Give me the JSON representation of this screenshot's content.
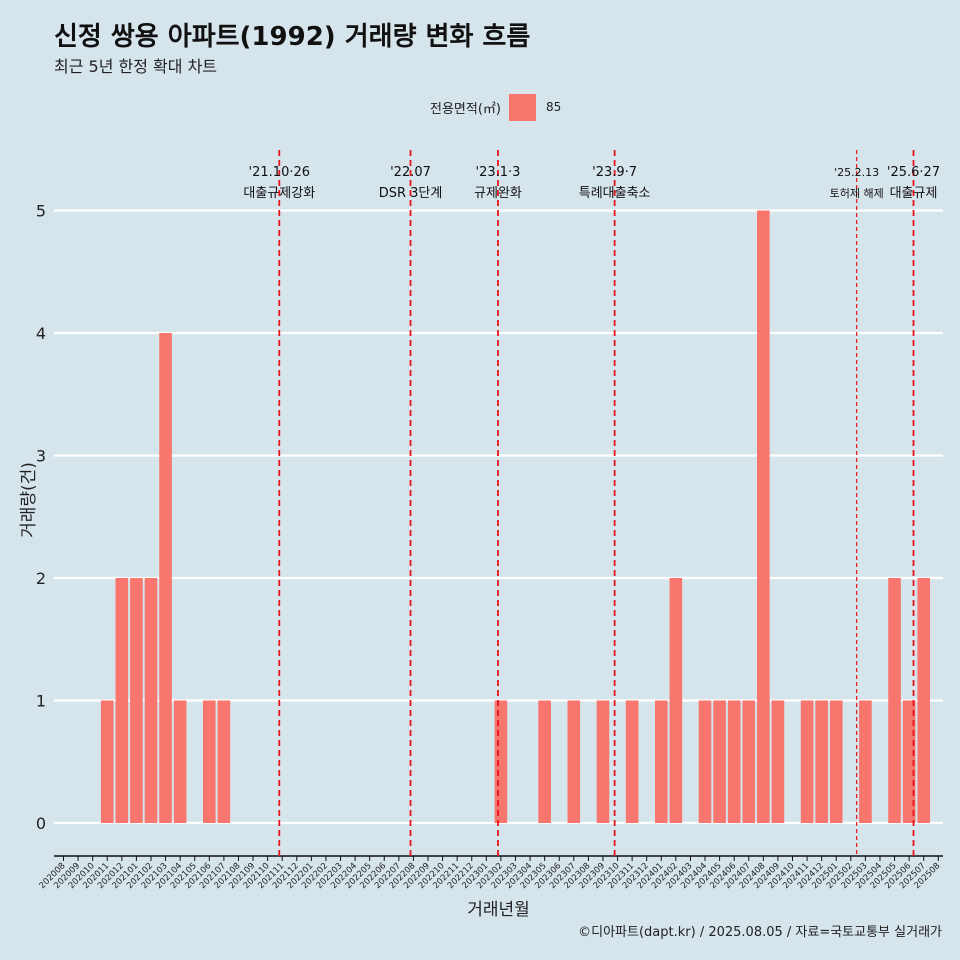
{
  "title": "신정 쌍용 아파트(1992) 거래량 변화 흐름",
  "subtitle": "최근 5년 한정 확대 차트",
  "legend": {
    "title": "전용면적(㎡)",
    "items": [
      {
        "label": "85",
        "color": "#f8766d"
      }
    ]
  },
  "caption": "©디아파트(dapt.kr) / 2025.08.05 / 자료=국토교통부 실거래가",
  "chart_data": {
    "type": "bar",
    "xlabel": "거래년월",
    "ylabel": "거래량(건)",
    "ylim": [
      0,
      5
    ],
    "yticks": [
      0,
      1,
      2,
      3,
      4,
      5
    ],
    "grid": true,
    "legend_position": "top",
    "categories": [
      "202008",
      "202009",
      "202010",
      "202011",
      "202012",
      "202101",
      "202102",
      "202103",
      "202104",
      "202105",
      "202106",
      "202107",
      "202108",
      "202109",
      "202110",
      "202111",
      "202112",
      "202201",
      "202202",
      "202203",
      "202204",
      "202205",
      "202206",
      "202207",
      "202208",
      "202209",
      "202210",
      "202211",
      "202212",
      "202301",
      "202302",
      "202303",
      "202304",
      "202305",
      "202306",
      "202307",
      "202308",
      "202309",
      "202310",
      "202311",
      "202312",
      "202401",
      "202402",
      "202403",
      "202404",
      "202405",
      "202406",
      "202407",
      "202408",
      "202409",
      "202410",
      "202411",
      "202412",
      "202501",
      "202502",
      "202503",
      "202504",
      "202505",
      "202506",
      "202507",
      "202508"
    ],
    "series": [
      {
        "name": "85",
        "color": "#f8766d",
        "values": [
          0,
          0,
          0,
          1,
          2,
          2,
          2,
          4,
          1,
          0,
          1,
          1,
          0,
          0,
          0,
          0,
          0,
          0,
          0,
          0,
          0,
          0,
          0,
          0,
          0,
          0,
          0,
          0,
          0,
          0,
          1,
          0,
          0,
          1,
          0,
          1,
          0,
          1,
          0,
          1,
          0,
          1,
          2,
          0,
          1,
          1,
          1,
          1,
          5,
          1,
          0,
          1,
          1,
          1,
          0,
          1,
          0,
          2,
          1,
          2,
          0
        ]
      }
    ],
    "annotations": [
      {
        "date": "'21.10·26",
        "label": "대출규제강화",
        "index": 14.8
      },
      {
        "date": "'22.07",
        "label": "DSR 3단계",
        "index": 23.8
      },
      {
        "date": "'23.1·3",
        "label": "규제완화",
        "index": 29.8
      },
      {
        "date": "'23.9·7",
        "label": "특례대출축소",
        "index": 37.8
      },
      {
        "date": "'25.2.13",
        "label": "토허제 해제",
        "index": 54.4,
        "thin": true
      },
      {
        "date": "'25.6·27",
        "label": "대출규제",
        "index": 58.3
      }
    ],
    "annotation_color": "#e8141b",
    "line_style": "dashed"
  }
}
